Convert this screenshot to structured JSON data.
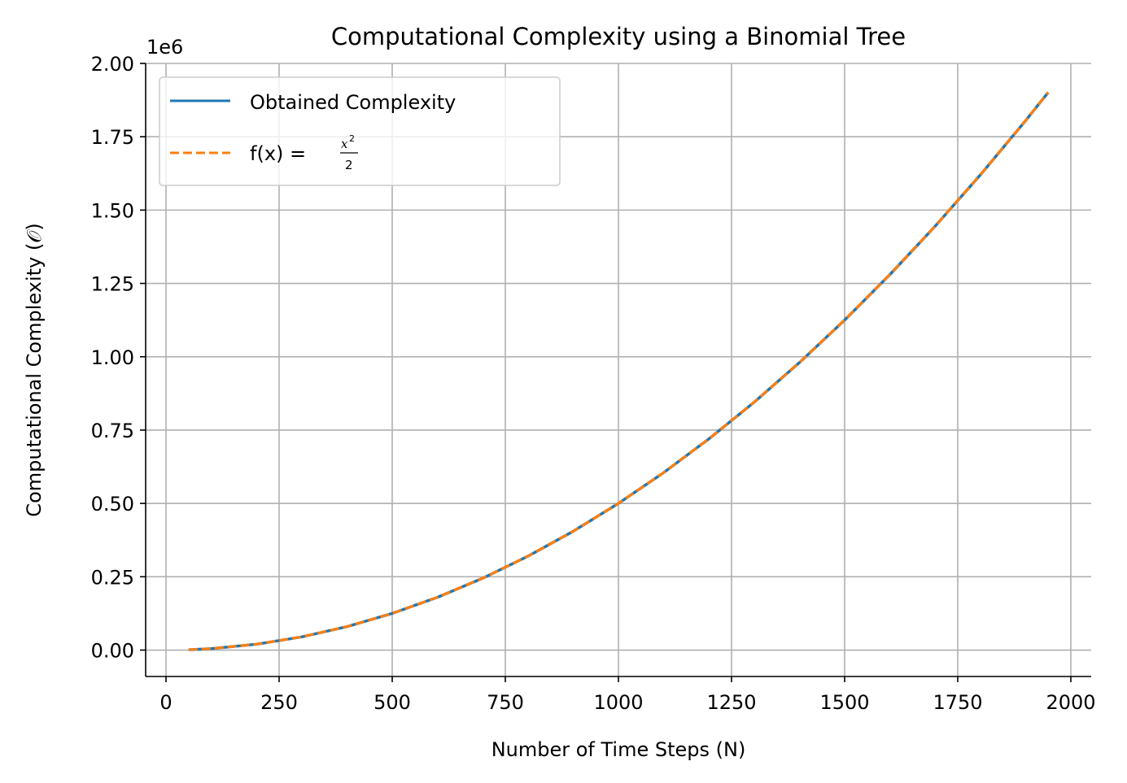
{
  "chart_data": {
    "type": "line",
    "title": "Computational Complexity using a Binomial Tree",
    "xlabel": "Number of Time Steps (N)",
    "ylabel": "Computational Complexity (𝒪)",
    "offset_text": "1e6",
    "xlim": [
      -45,
      2045
    ],
    "ylim": [
      -0.09,
      2.0
    ],
    "y_scale_multiplier": 1000000,
    "x_ticks": [
      0,
      250,
      500,
      750,
      1000,
      1250,
      1500,
      1750,
      2000
    ],
    "x_tick_labels": [
      "0",
      "250",
      "500",
      "750",
      "1000",
      "1250",
      "1500",
      "1750",
      "2000"
    ],
    "y_ticks": [
      0.0,
      0.25,
      0.5,
      0.75,
      1.0,
      1.25,
      1.5,
      1.75,
      2.0
    ],
    "y_tick_labels": [
      "0.00",
      "0.25",
      "0.50",
      "0.75",
      "1.00",
      "1.25",
      "1.50",
      "1.75",
      "2.00"
    ],
    "grid": true,
    "legend_position": "top-left",
    "x": [
      50,
      100,
      200,
      300,
      400,
      500,
      600,
      700,
      800,
      900,
      1000,
      1100,
      1200,
      1300,
      1400,
      1500,
      1600,
      1700,
      1800,
      1900,
      1950
    ],
    "series": [
      {
        "name": "Obtained Complexity",
        "color": "#1f77b4",
        "style": "solid",
        "values": [
          0.00125,
          0.005,
          0.02,
          0.045,
          0.08,
          0.125,
          0.18,
          0.245,
          0.32,
          0.405,
          0.5,
          0.605,
          0.72,
          0.845,
          0.98,
          1.125,
          1.28,
          1.445,
          1.62,
          1.805,
          1.90125
        ]
      },
      {
        "name": "f(x) = ",
        "math_label": {
          "numerator": "x",
          "exponent": "2",
          "denominator": "2"
        },
        "color": "#ff7f0e",
        "style": "dashed",
        "values": [
          0.00125,
          0.005,
          0.02,
          0.045,
          0.08,
          0.125,
          0.18,
          0.245,
          0.32,
          0.405,
          0.5,
          0.605,
          0.72,
          0.845,
          0.98,
          1.125,
          1.28,
          1.445,
          1.62,
          1.805,
          1.90125
        ]
      }
    ]
  }
}
